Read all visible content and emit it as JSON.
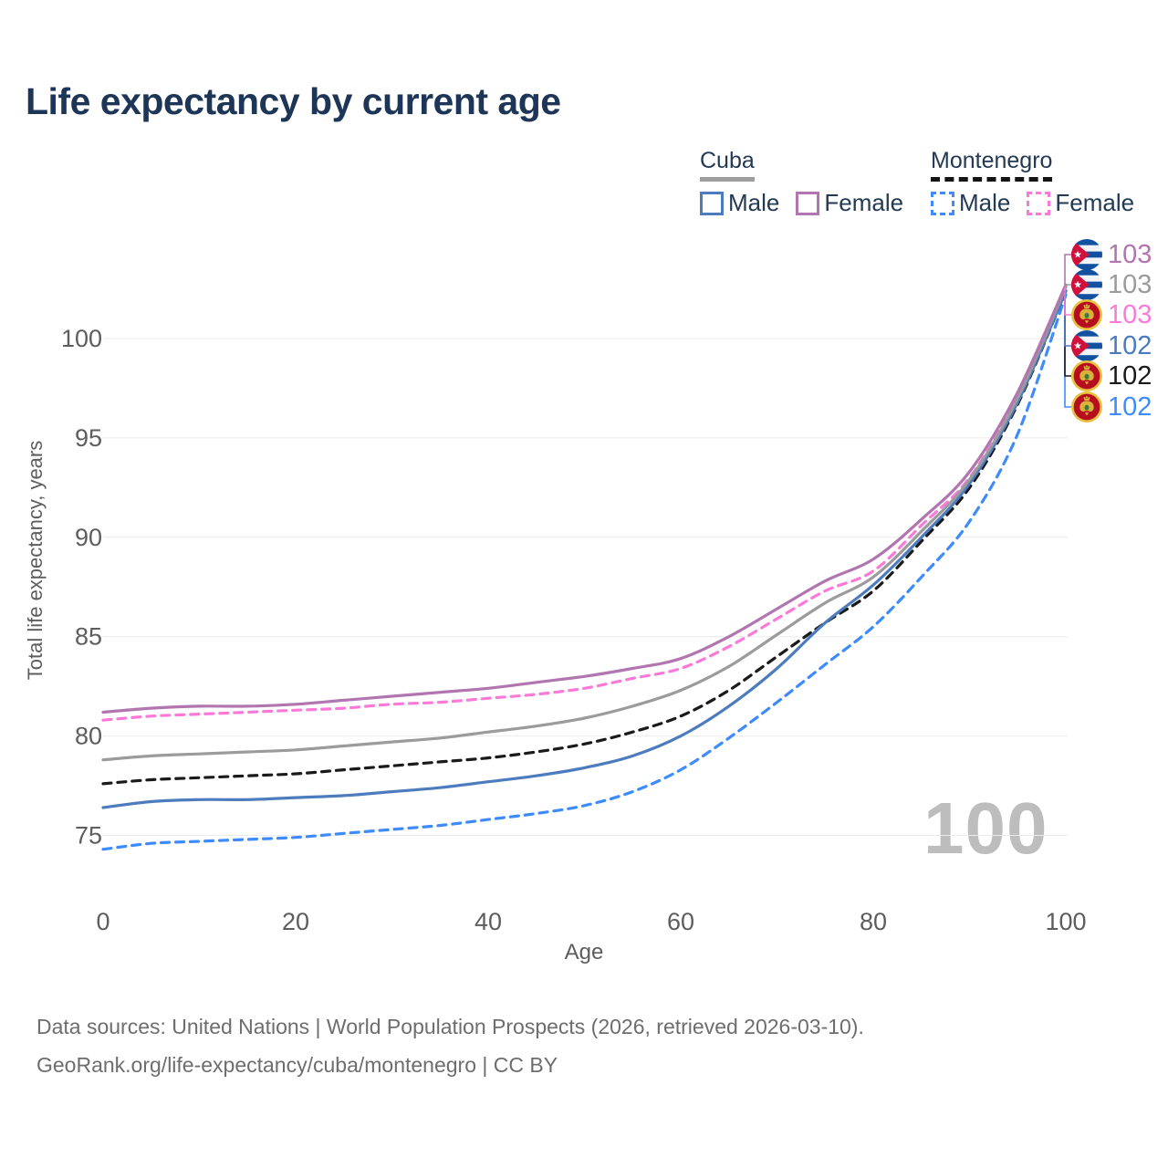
{
  "title": "Life expectancy by current age",
  "watermark": "100",
  "legend": {
    "cuba": {
      "title": "Cuba",
      "male": "Male",
      "female": "Female"
    },
    "montenegro": {
      "title": "Montenegro",
      "male": "Male",
      "female": "Female"
    }
  },
  "end_labels": [
    {
      "value": "103",
      "flag": "cuba",
      "color": "#b175af",
      "series": "cuba-female"
    },
    {
      "value": "103",
      "flag": "cuba",
      "color": "#9b9b9b",
      "series": "cuba-both"
    },
    {
      "value": "103",
      "flag": "montenegro",
      "color": "#fb7ad8",
      "series": "montenegro-female"
    },
    {
      "value": "102",
      "flag": "cuba",
      "color": "#4a7ac0",
      "series": "cuba-male"
    },
    {
      "value": "102",
      "flag": "montenegro",
      "color": "#1a1a1a",
      "series": "montenegro-both"
    },
    {
      "value": "102",
      "flag": "montenegro",
      "color": "#3d8bfd",
      "series": "montenegro-male"
    }
  ],
  "footer": {
    "line1": "Data sources: United Nations | World Population Prospects (2026, retrieved 2026-03-10).",
    "line2": "GeoRank.org/life-expectancy/cuba/montenegro | CC BY"
  },
  "chart_data": {
    "type": "line",
    "title": "Life expectancy by current age",
    "xlabel": "Age",
    "ylabel": "Total life expectancy, years",
    "x_ticks": [
      0,
      20,
      40,
      60,
      80,
      100
    ],
    "y_ticks": [
      75,
      80,
      85,
      90,
      95,
      100
    ],
    "xlim": [
      0,
      100
    ],
    "ylim": [
      73.5,
      103.5
    ],
    "grid": "horizontal-only",
    "legend_position": "top-right",
    "x": [
      0,
      5,
      10,
      15,
      20,
      25,
      30,
      35,
      40,
      45,
      50,
      55,
      60,
      65,
      70,
      75,
      80,
      85,
      90,
      95,
      100
    ],
    "series": [
      {
        "id": "cuba-female",
        "name": "Cuba Female",
        "color": "#b175af",
        "style": "solid",
        "end_label": 103,
        "values": [
          81.2,
          81.4,
          81.5,
          81.5,
          81.6,
          81.8,
          82.0,
          82.2,
          82.4,
          82.7,
          83.0,
          83.4,
          83.9,
          85.0,
          86.4,
          87.8,
          88.9,
          90.9,
          93.3,
          97.3,
          102.7
        ]
      },
      {
        "id": "cuba-both",
        "name": "Cuba (both sexes)",
        "color": "#9b9b9b",
        "style": "solid",
        "end_label": 103,
        "values": [
          78.8,
          79.0,
          79.1,
          79.2,
          79.3,
          79.5,
          79.7,
          79.9,
          80.2,
          80.5,
          80.9,
          81.5,
          82.3,
          83.5,
          85.1,
          86.7,
          88.0,
          90.3,
          92.9,
          97.0,
          102.6
        ]
      },
      {
        "id": "montenegro-female",
        "name": "Montenegro Female",
        "color": "#fb7ad8",
        "style": "dashed",
        "end_label": 103,
        "values": [
          80.8,
          81.0,
          81.1,
          81.2,
          81.3,
          81.4,
          81.6,
          81.7,
          81.9,
          82.1,
          82.4,
          82.9,
          83.4,
          84.5,
          85.9,
          87.3,
          88.3,
          90.6,
          93.0,
          97.1,
          102.6
        ]
      },
      {
        "id": "cuba-male",
        "name": "Cuba Male",
        "color": "#4d7cbe",
        "style": "solid",
        "end_label": 102,
        "values": [
          76.4,
          76.7,
          76.8,
          76.8,
          76.9,
          77.0,
          77.2,
          77.4,
          77.7,
          78.0,
          78.4,
          79.0,
          80.0,
          81.5,
          83.4,
          85.7,
          87.6,
          90.0,
          92.7,
          96.8,
          102.4
        ]
      },
      {
        "id": "montenegro-both",
        "name": "Montenegro (both sexes)",
        "color": "#1a1a1a",
        "style": "dashed",
        "end_label": 102,
        "values": [
          77.6,
          77.8,
          77.9,
          78.0,
          78.1,
          78.3,
          78.5,
          78.7,
          78.9,
          79.2,
          79.6,
          80.2,
          81.0,
          82.3,
          84.0,
          85.7,
          87.3,
          89.8,
          92.5,
          96.7,
          102.4
        ]
      },
      {
        "id": "montenegro-male",
        "name": "Montenegro Male",
        "color": "#3d8bfd",
        "style": "dashed",
        "end_label": 102,
        "values": [
          74.3,
          74.6,
          74.7,
          74.8,
          74.9,
          75.1,
          75.3,
          75.5,
          75.8,
          76.1,
          76.5,
          77.2,
          78.3,
          79.9,
          81.7,
          83.6,
          85.5,
          88.0,
          90.8,
          95.2,
          102.2
        ]
      }
    ]
  }
}
